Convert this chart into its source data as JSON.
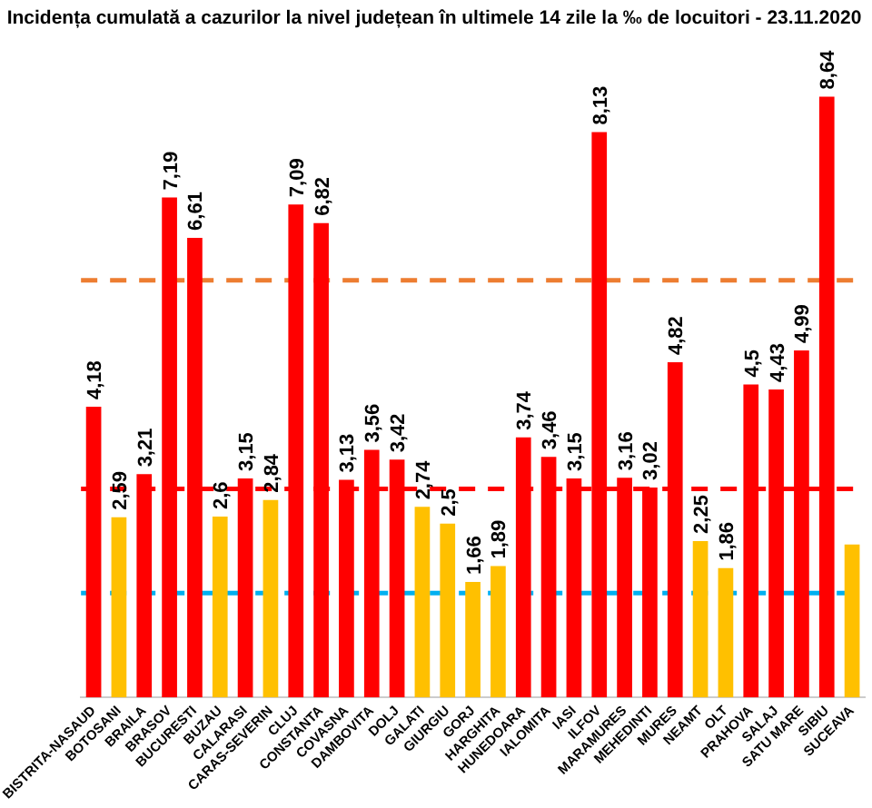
{
  "chart_data": {
    "type": "bar",
    "title": "Incidența cumulată a cazurilor la nivel județean în ultimele 14 zile la ‰ de locuitori - 23.11.2020",
    "categories": [
      "BISTRITA-NASAUD",
      "BOTOSANI",
      "BRAILA",
      "BRASOV",
      "BUCURESTI",
      "BUZAU",
      "CALARASI",
      "CARAS-SEVERIN",
      "CLUJ",
      "CONSTANTA",
      "COVASNA",
      "DAMBOVITA",
      "DOLJ",
      "GALATI",
      "GIURGIU",
      "GORJ",
      "HARGHITA",
      "HUNEDOARA",
      "IALOMITA",
      "IASI",
      "ILFOV",
      "MARAMURES",
      "MEHEDINTI",
      "MURES",
      "NEAMT",
      "OLT",
      "PRAHOVA",
      "SALAJ",
      "SATU MARE",
      "SIBIU",
      "SUCEAVA"
    ],
    "values": [
      4.18,
      2.59,
      3.21,
      7.19,
      6.61,
      2.6,
      3.15,
      2.84,
      7.09,
      6.82,
      3.13,
      3.56,
      3.42,
      2.74,
      2.5,
      1.66,
      1.89,
      3.74,
      3.46,
      3.15,
      8.13,
      3.16,
      3.02,
      4.82,
      2.25,
      1.86,
      4.5,
      4.43,
      4.99,
      8.64,
      2.2
    ],
    "value_labels": [
      "4,18",
      "2,59",
      "3,21",
      "7,19",
      "6,61",
      "2,6",
      "3,15",
      "2,84",
      "7,09",
      "6,82",
      "3,13",
      "3,56",
      "3,42",
      "2,74",
      "2,5",
      "1,66",
      "1,89",
      "3,74",
      "3,46",
      "3,15",
      "8,13",
      "3,16",
      "3,02",
      "4,82",
      "2,25",
      "1,86",
      "4,5",
      "4,43",
      "4,99",
      "8,64",
      null
    ],
    "colors": [
      "#ff0000",
      "#ffc000",
      "#ff0000",
      "#ff0000",
      "#ff0000",
      "#ffc000",
      "#ff0000",
      "#ffc000",
      "#ff0000",
      "#ff0000",
      "#ff0000",
      "#ff0000",
      "#ff0000",
      "#ffc000",
      "#ffc000",
      "#ffc000",
      "#ffc000",
      "#ff0000",
      "#ff0000",
      "#ff0000",
      "#ff0000",
      "#ff0000",
      "#ff0000",
      "#ff0000",
      "#ffc000",
      "#ffc000",
      "#ff0000",
      "#ff0000",
      "#ff0000",
      "#ff0000",
      "#ffc000"
    ],
    "ref_lines": [
      {
        "axis": "y",
        "value": 6,
        "color": "#ed7d31",
        "line_style": "dashed"
      },
      {
        "axis": "y",
        "value": 3,
        "color": "#ff0000",
        "line_style": "dashed"
      },
      {
        "axis": "y",
        "value": 1.5,
        "color": "#00b0f0",
        "line_style": "dashed"
      }
    ],
    "grid": false,
    "legend": false
  }
}
